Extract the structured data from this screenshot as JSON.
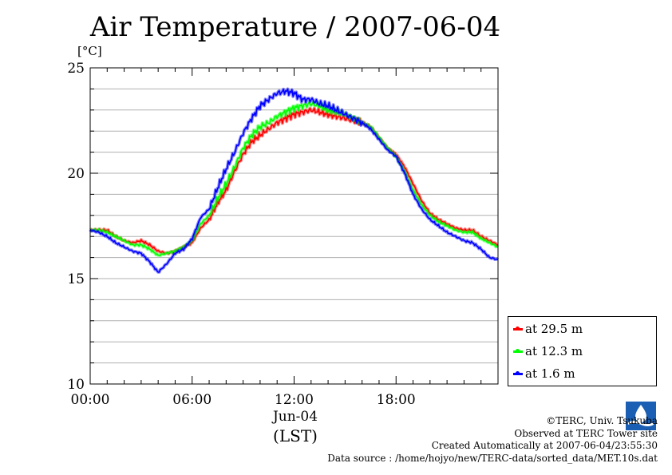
{
  "chart_data": {
    "type": "line",
    "title": "Air Temperature / 2007-06-04",
    "ylabel": "[°C]",
    "xlabel": "(LST)",
    "x_date_label": "Jun-04",
    "x_unit": "hour (LST)",
    "xlim": [
      0,
      24
    ],
    "ylim": [
      10,
      25
    ],
    "y_ticks": [
      10,
      15,
      20,
      25
    ],
    "y_minor_step": 1,
    "x_ticks": [
      0,
      6,
      12,
      18
    ],
    "x_tick_labels": [
      "00:00",
      "06:00",
      "12:00",
      "18:00"
    ],
    "grid": true,
    "legend_position": "bottom-right outside",
    "x": [
      0,
      0.5,
      1,
      1.5,
      2,
      2.5,
      3,
      3.5,
      4,
      4.5,
      5,
      5.5,
      6,
      6.5,
      7,
      7.5,
      8,
      8.5,
      9,
      9.5,
      10,
      10.5,
      11,
      11.5,
      12,
      12.5,
      13,
      13.5,
      14,
      14.5,
      15,
      15.5,
      16,
      16.5,
      17,
      17.5,
      18,
      18.5,
      19,
      19.5,
      20,
      20.5,
      21,
      21.5,
      22,
      22.5,
      23,
      23.5,
      24
    ],
    "series": [
      {
        "name": "at 29.5 m",
        "color": "#ff0000",
        "values": [
          17.3,
          17.3,
          17.3,
          17.0,
          16.8,
          16.7,
          16.8,
          16.6,
          16.3,
          16.2,
          16.3,
          16.5,
          16.7,
          17.4,
          17.8,
          18.6,
          19.2,
          20.1,
          20.9,
          21.5,
          21.8,
          22.1,
          22.4,
          22.6,
          22.8,
          22.9,
          23.0,
          22.9,
          22.8,
          22.7,
          22.6,
          22.5,
          22.4,
          22.2,
          21.7,
          21.2,
          20.9,
          20.3,
          19.5,
          18.7,
          18.1,
          17.8,
          17.6,
          17.4,
          17.3,
          17.3,
          17.0,
          16.8,
          16.6
        ]
      },
      {
        "name": "at 12.3 m",
        "color": "#00ff00",
        "values": [
          17.3,
          17.3,
          17.2,
          17.0,
          16.8,
          16.6,
          16.6,
          16.4,
          16.1,
          16.2,
          16.3,
          16.5,
          16.8,
          17.6,
          18.0,
          18.8,
          19.5,
          20.3,
          21.2,
          21.8,
          22.2,
          22.4,
          22.7,
          22.9,
          23.1,
          23.2,
          23.3,
          23.2,
          23.0,
          22.9,
          22.8,
          22.6,
          22.4,
          22.2,
          21.7,
          21.2,
          20.8,
          20.1,
          19.2,
          18.5,
          18.0,
          17.7,
          17.5,
          17.3,
          17.2,
          17.2,
          16.9,
          16.7,
          16.5
        ]
      },
      {
        "name": "at 1.6 m",
        "color": "#0000ff",
        "values": [
          17.3,
          17.2,
          17.0,
          16.7,
          16.5,
          16.3,
          16.2,
          15.8,
          15.3,
          15.7,
          16.2,
          16.4,
          16.9,
          17.9,
          18.3,
          19.3,
          20.2,
          21.0,
          21.9,
          22.6,
          23.2,
          23.5,
          23.8,
          23.9,
          23.8,
          23.5,
          23.5,
          23.3,
          23.2,
          23.0,
          22.8,
          22.6,
          22.4,
          22.1,
          21.6,
          21.1,
          20.8,
          20.0,
          19.0,
          18.3,
          17.8,
          17.5,
          17.2,
          17.0,
          16.8,
          16.7,
          16.4,
          16.0,
          15.9
        ]
      }
    ]
  },
  "legend": {
    "items": [
      {
        "label": "at 29.5 m",
        "color": "#ff0000"
      },
      {
        "label": "at 12.3 m",
        "color": "#00ff00"
      },
      {
        "label": "at 1.6 m",
        "color": "#0000ff"
      }
    ]
  },
  "footer": {
    "copyright": "©TERC, Univ. Tsukuba",
    "observed": "Observed at TERC Tower site",
    "created": "Created Automatically at 2007-06-04/23:55:30",
    "source": "Data source : /home/hojyo/new/TERC-data/sorted_data/MET.10s.dat"
  },
  "logo": {
    "text": "TERC",
    "color": "#1a5fb4"
  }
}
